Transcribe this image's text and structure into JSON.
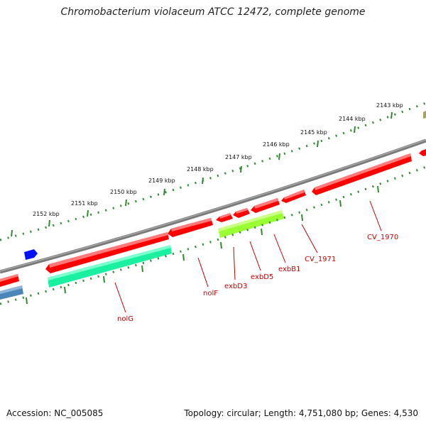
{
  "header": {
    "title": "Chromobacterium violaceum ATCC 12472, complete genome"
  },
  "footer": {
    "accession": "Accession: NC_005085",
    "summary": "Topology: circular; Length: 4,751,080 bp; Genes: 4,530"
  },
  "colors": {
    "backbone": "#7a7a7a",
    "tick": "#2e8b2e",
    "gene_red": "#ff0000",
    "gene_teal": "#19f0a0",
    "gene_lime": "#99ff33",
    "gene_blue": "#0010ff",
    "gene_steel": "#4a86b8",
    "label": "#c00000"
  },
  "kbp_labels": [
    "2143 kbp",
    "2144 kbp",
    "2145 kbp",
    "2146 kbp",
    "2147 kbp",
    "2148 kbp",
    "2149 kbp",
    "2150 kbp",
    "2151 kbp",
    "2152 kbp"
  ],
  "gene_labels": [
    "nolG",
    "nolF",
    "exbD3",
    "exbD5",
    "exbB1",
    "CV_1971",
    "CV_1970"
  ]
}
